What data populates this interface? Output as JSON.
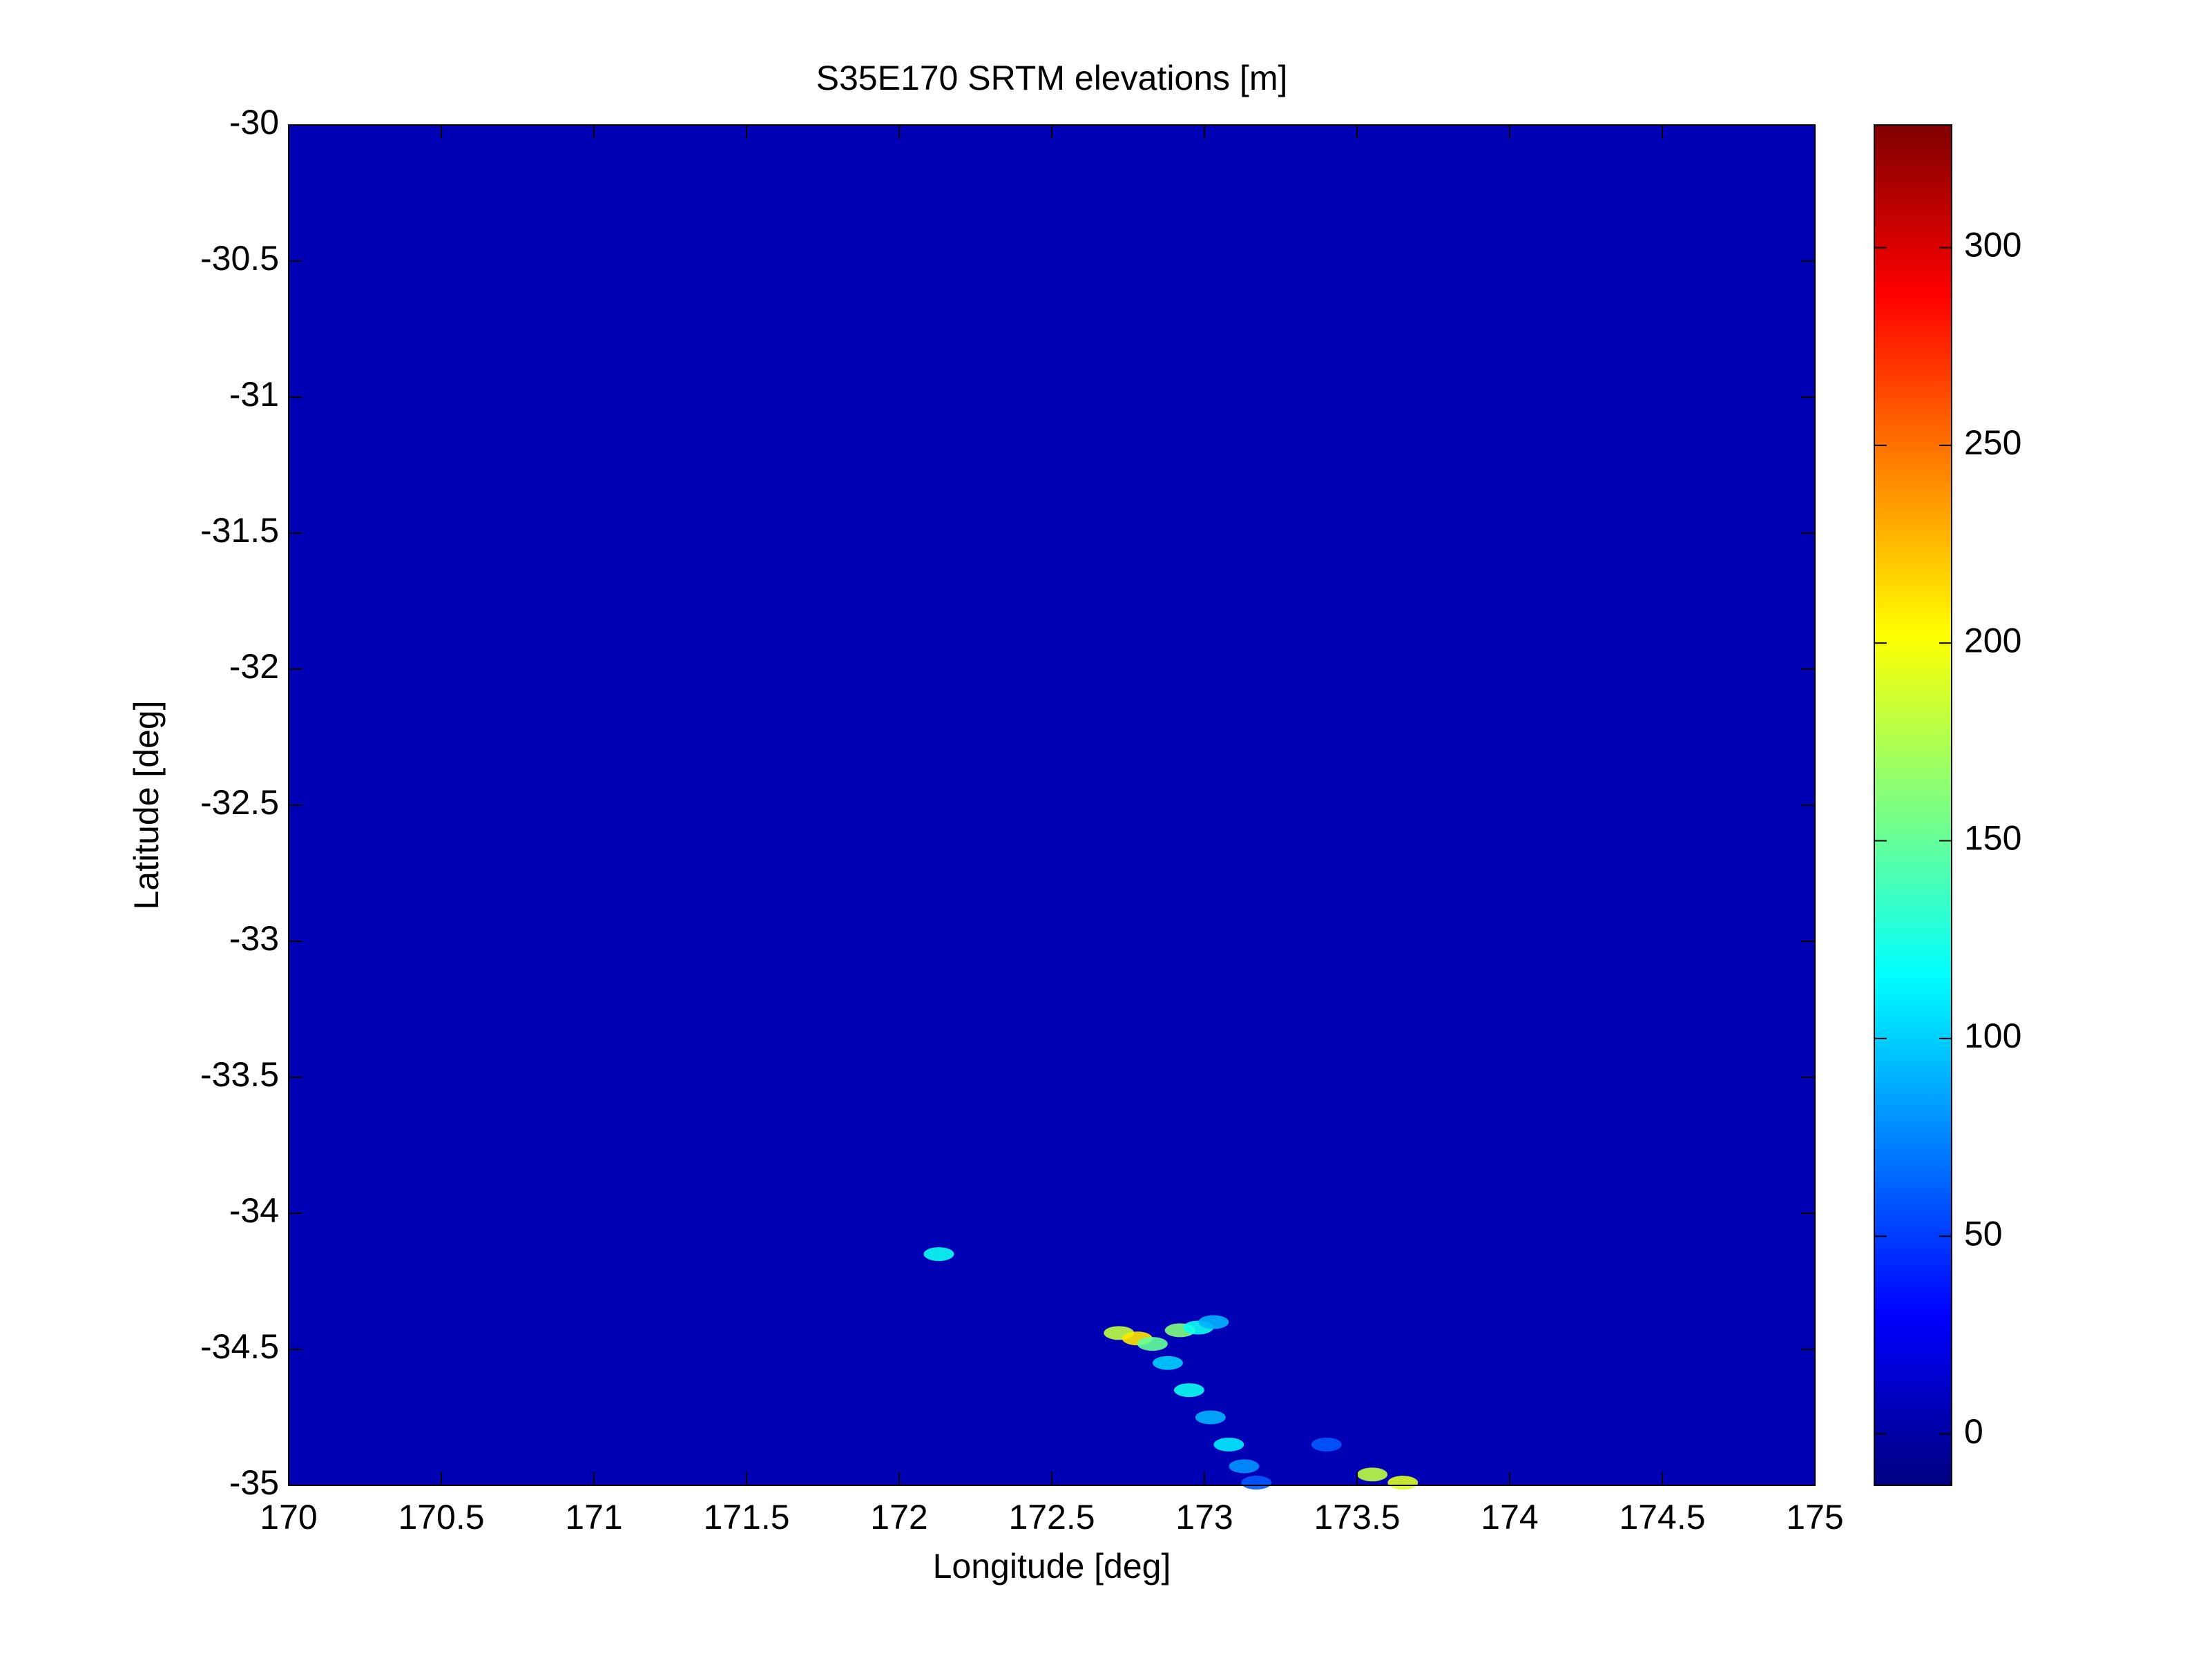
{
  "chart_data": {
    "type": "heatmap",
    "title": "S35E170 SRTM elevations [m]",
    "x_label": "Longitude [deg]",
    "y_label": "Latitude [deg]",
    "xlim": [
      170,
      175
    ],
    "xticks": [
      170,
      170.5,
      171,
      171.5,
      172,
      172.5,
      173,
      173.5,
      174,
      174.5,
      175
    ],
    "ylim": [
      -35,
      -30
    ],
    "yticks": [
      -30,
      -30.5,
      -31,
      -31.5,
      -32,
      -32.5,
      -33,
      -33.5,
      -34,
      -34.5,
      -35
    ],
    "colormap": "jet",
    "clim": [
      -13,
      331
    ],
    "cticks": [
      0,
      50,
      100,
      150,
      200,
      250,
      300
    ],
    "x": [
      172.13,
      172.72,
      172.78,
      172.83,
      172.92,
      172.98,
      173.03,
      172.88,
      172.95,
      173.02,
      173.08,
      173.13,
      173.17,
      173.4,
      173.55,
      173.65
    ],
    "y": [
      -34.15,
      -34.44,
      -34.46,
      -34.48,
      -34.43,
      -34.42,
      -34.4,
      -34.55,
      -34.65,
      -34.75,
      -34.85,
      -34.93,
      -34.99,
      -34.85,
      -34.96,
      -34.99
    ],
    "values": [
      120,
      180,
      210,
      150,
      160,
      120,
      90,
      100,
      120,
      90,
      110,
      80,
      60,
      60,
      180,
      190
    ]
  }
}
